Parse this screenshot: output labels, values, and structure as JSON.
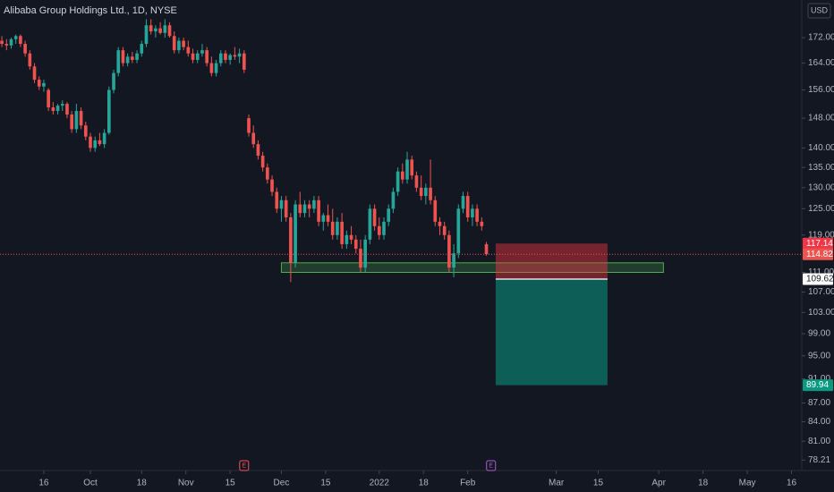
{
  "chart_data": {
    "type": "candlestick",
    "title": "Alibaba Group Holdings Ltd., 1D, NYSE",
    "currency": "USD",
    "log_scale": true,
    "up_color": "#26a69a",
    "down_color": "#ef5350",
    "ylim": [
      76.7,
      184.5
    ],
    "yticks": [
      {
        "value": 172,
        "label": "172.00"
      },
      {
        "value": 164,
        "label": "164.00"
      },
      {
        "value": 156,
        "label": "156.00"
      },
      {
        "value": 148,
        "label": "148.00"
      },
      {
        "value": 140,
        "label": "140.00"
      },
      {
        "value": 135,
        "label": "135.00"
      },
      {
        "value": 130,
        "label": "130.00"
      },
      {
        "value": 125,
        "label": "125.00"
      },
      {
        "value": 119,
        "label": "119.00"
      },
      {
        "value": 111,
        "label": "111.00"
      },
      {
        "value": 107,
        "label": "107.00"
      },
      {
        "value": 103,
        "label": "103.00"
      },
      {
        "value": 99,
        "label": "99.00"
      },
      {
        "value": 95,
        "label": "95.00"
      },
      {
        "value": 91,
        "label": "91.00"
      },
      {
        "value": 87,
        "label": "87.00"
      },
      {
        "value": 84,
        "label": "84.00"
      },
      {
        "value": 81,
        "label": "81.00"
      },
      {
        "value": 78.21,
        "label": "78.21"
      }
    ],
    "xlim": [
      -0.4,
      171.7
    ],
    "xticks": [
      {
        "value": 9,
        "label": "16"
      },
      {
        "value": 19,
        "label": "Oct"
      },
      {
        "value": 30,
        "label": "18"
      },
      {
        "value": 39.5,
        "label": "Nov"
      },
      {
        "value": 49,
        "label": "15"
      },
      {
        "value": 60,
        "label": "Dec"
      },
      {
        "value": 69.5,
        "label": "15"
      },
      {
        "value": 81,
        "label": "2022"
      },
      {
        "value": 90.5,
        "label": "18"
      },
      {
        "value": 100,
        "label": "Feb"
      },
      {
        "value": 119,
        "label": "Mar"
      },
      {
        "value": 128,
        "label": "15"
      },
      {
        "value": 141,
        "label": "Apr"
      },
      {
        "value": 150.5,
        "label": "18"
      },
      {
        "value": 160,
        "label": "May"
      },
      {
        "value": 169.5,
        "label": "16"
      }
    ],
    "candles": [
      [
        171,
        172.5,
        169,
        170
      ],
      [
        170,
        171.5,
        168,
        169.5
      ],
      [
        169.5,
        172,
        168.5,
        171.5
      ],
      [
        171.5,
        173,
        170,
        172.5
      ],
      [
        172.5,
        173,
        169,
        170
      ],
      [
        170,
        171,
        166,
        167
      ],
      [
        167,
        168,
        162,
        163
      ],
      [
        163,
        164,
        158,
        159
      ],
      [
        159,
        160,
        156,
        157
      ],
      [
        157,
        159,
        155.5,
        158
      ],
      [
        156,
        156.5,
        150,
        151
      ],
      [
        151,
        152.5,
        149,
        150
      ],
      [
        150,
        152,
        149,
        151.5
      ],
      [
        151.5,
        153,
        150,
        152
      ],
      [
        152,
        152.5,
        148,
        149
      ],
      [
        149,
        150,
        144,
        145
      ],
      [
        145,
        152,
        144,
        150
      ],
      [
        150,
        151,
        145,
        146
      ],
      [
        146,
        147,
        142,
        143
      ],
      [
        143,
        144,
        139,
        140
      ],
      [
        140,
        143,
        139,
        142
      ],
      [
        142,
        144,
        140.5,
        141
      ],
      [
        141,
        145,
        140,
        144
      ],
      [
        144,
        157,
        143.5,
        156
      ],
      [
        156,
        162,
        155,
        161
      ],
      [
        161,
        169,
        160,
        168
      ],
      [
        168,
        169,
        163,
        164
      ],
      [
        164,
        167,
        163,
        166
      ],
      [
        166,
        167.5,
        164,
        165
      ],
      [
        165,
        168,
        164,
        167
      ],
      [
        167,
        171,
        166,
        170
      ],
      [
        170,
        178,
        169,
        176
      ],
      [
        176,
        178,
        173,
        174
      ],
      [
        174,
        176,
        172,
        175
      ],
      [
        175,
        177,
        173,
        173.5
      ],
      [
        173.5,
        178,
        172,
        176
      ],
      [
        176,
        177,
        172,
        172.5
      ],
      [
        172.5,
        174,
        167,
        168
      ],
      [
        168,
        172,
        167,
        171
      ],
      [
        171,
        172,
        168,
        169
      ],
      [
        169,
        171,
        166,
        167
      ],
      [
        167,
        168.5,
        164,
        165
      ],
      [
        165,
        168,
        164,
        167
      ],
      [
        167,
        170,
        166,
        168
      ],
      [
        168,
        169,
        163,
        164
      ],
      [
        164,
        166,
        160,
        161
      ],
      [
        161,
        165,
        160,
        164
      ],
      [
        164,
        168,
        163,
        167
      ],
      [
        167,
        168,
        164,
        165
      ],
      [
        165,
        167,
        163.5,
        166.5
      ],
      [
        166.5,
        169,
        165,
        166
      ],
      [
        166,
        168.5,
        164,
        167
      ],
      [
        167,
        168,
        161,
        162
      ],
      [
        148,
        149,
        143,
        144
      ],
      [
        144,
        146,
        140,
        141
      ],
      [
        141,
        142,
        137,
        138
      ],
      [
        138,
        139,
        134,
        135
      ],
      [
        135,
        136,
        131,
        132
      ],
      [
        132,
        133,
        128,
        129
      ],
      [
        129,
        130,
        124,
        125
      ],
      [
        125,
        128,
        122,
        127
      ],
      [
        127,
        128,
        122,
        123
      ],
      [
        123,
        124,
        109,
        113
      ],
      [
        113,
        127,
        112,
        126
      ],
      [
        126,
        129,
        123,
        124
      ],
      [
        124,
        127,
        123,
        126
      ],
      [
        126,
        127,
        123,
        125
      ],
      [
        125,
        128,
        124,
        127
      ],
      [
        127,
        128,
        121,
        122
      ],
      [
        122,
        124,
        120,
        123.5
      ],
      [
        123.5,
        126,
        121,
        122
      ],
      [
        122,
        125,
        118,
        119
      ],
      [
        119,
        123,
        118,
        122
      ],
      [
        122,
        124,
        116,
        117
      ],
      [
        117,
        120,
        116,
        119
      ],
      [
        119,
        121,
        117,
        118
      ],
      [
        118,
        119,
        115,
        116
      ],
      [
        116,
        118,
        111,
        112
      ],
      [
        112,
        119,
        111,
        118
      ],
      [
        118,
        126,
        117,
        125
      ],
      [
        125,
        126,
        120,
        121
      ],
      [
        121,
        123,
        118,
        119
      ],
      [
        119,
        123,
        118,
        122
      ],
      [
        122,
        126,
        121,
        125
      ],
      [
        125,
        130,
        124,
        129
      ],
      [
        129,
        135,
        128,
        134
      ],
      [
        134,
        136,
        131,
        132
      ],
      [
        132,
        139,
        131,
        137
      ],
      [
        137,
        138,
        132,
        133
      ],
      [
        133,
        134,
        129,
        130
      ],
      [
        130,
        133,
        127,
        128
      ],
      [
        128,
        131,
        126,
        130
      ],
      [
        130,
        137,
        126,
        127
      ],
      [
        127,
        128,
        121,
        122
      ],
      [
        122,
        123,
        119,
        121
      ],
      [
        121,
        122,
        118,
        119
      ],
      [
        119,
        120,
        111,
        112
      ],
      [
        112,
        117,
        110,
        115
      ],
      [
        115,
        126,
        114,
        125
      ],
      [
        125,
        129,
        124,
        128
      ],
      [
        128,
        129,
        122,
        123
      ],
      [
        123,
        126,
        121,
        125
      ],
      [
        125,
        126,
        121,
        122
      ],
      [
        122,
        123,
        120,
        121
      ],
      [
        117,
        117.5,
        114.5,
        114.82
      ]
    ],
    "zone": {
      "low": 111,
      "high": 113,
      "start": 60,
      "end": 142,
      "color": "#4caf50"
    },
    "position": {
      "start": 106,
      "end": 130,
      "stop": 117.14,
      "entry": 109.62,
      "target": 89.94,
      "stop_color": "#f23645",
      "target_color": "#089981"
    },
    "events": [
      {
        "index": 52,
        "label": "E",
        "color": "#f7525f"
      },
      {
        "index": 105,
        "label": "E",
        "color": "#b05dd6"
      }
    ]
  }
}
